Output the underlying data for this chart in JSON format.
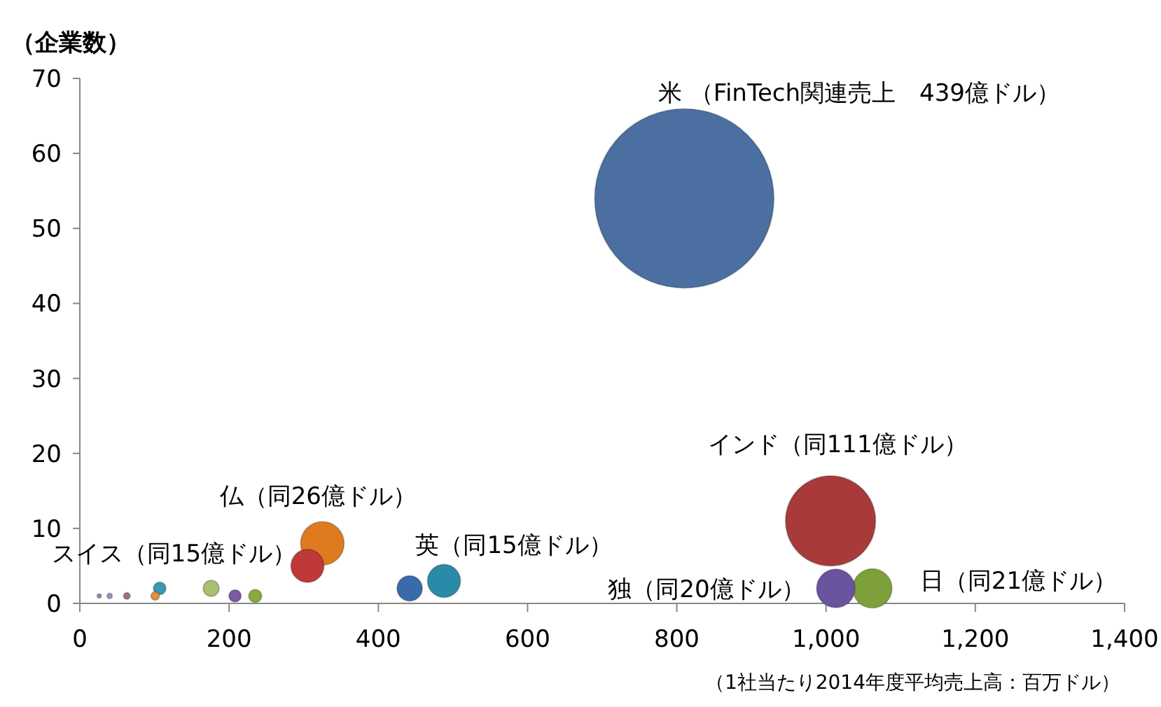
{
  "chart_data": {
    "type": "bubble",
    "ylabel": "（企業数）",
    "xlabel": "（1社当たり2014年度平均売上高：百万ドル）",
    "x": [
      810,
      1006,
      1062,
      1013,
      488,
      442,
      325,
      305,
      107,
      176,
      208,
      235,
      101,
      26,
      40,
      63
    ],
    "values": [
      54,
      11,
      2,
      2,
      3,
      2,
      8,
      5,
      2,
      2,
      1,
      1,
      1,
      1,
      1,
      1
    ],
    "sizes": [
      1,
      0.253,
      0.048,
      0.046,
      0.034,
      0.02,
      0.059,
      0.034,
      0.005,
      0.008,
      0.0047,
      0.0054,
      0.0023,
      0.0006,
      0.0009,
      0.0014
    ],
    "colors": [
      "#4a6fa0",
      "#a83a3a",
      "#7ea03a",
      "#6a54a0",
      "#2a8aa8",
      "#3a6aaa",
      "#e07a20",
      "#c03838",
      "#3a9ab0",
      "#a8c070",
      "#7a5aa0",
      "#8aaa40",
      "#e09040",
      "#9090b0",
      "#a090c0",
      "#a07080"
    ],
    "xlim": [
      0,
      1400
    ],
    "ylim": [
      0,
      70
    ],
    "xticks": [
      0,
      200,
      400,
      600,
      800,
      {
        "value": 1000,
        "label": "1,000"
      },
      {
        "value": 1200,
        "label": "1,200"
      },
      {
        "value": 1400,
        "label": "1,400"
      }
    ],
    "yticks": [
      0,
      10,
      20,
      30,
      40,
      50,
      60,
      70
    ],
    "annotations": [
      "米 （FinTech関連売上　439億ドル）",
      {
        "text": "インド（同111億ドル）",
        "x": 1006,
        "y": 11
      },
      {
        "text": "独（同20億ドル）",
        "x": 1013,
        "y": 2
      },
      {
        "text": "日（同21億ドル）",
        "x": 1062,
        "y": 2
      },
      {
        "text": "英（同15億ドル）",
        "x": 488,
        "y": 3
      },
      {
        "text": "仏（同26億ドル）",
        "x": 325,
        "y": 8
      },
      {
        "text": "スイス（同15億ドル）",
        "x": 305,
        "y": 5
      }
    ]
  }
}
